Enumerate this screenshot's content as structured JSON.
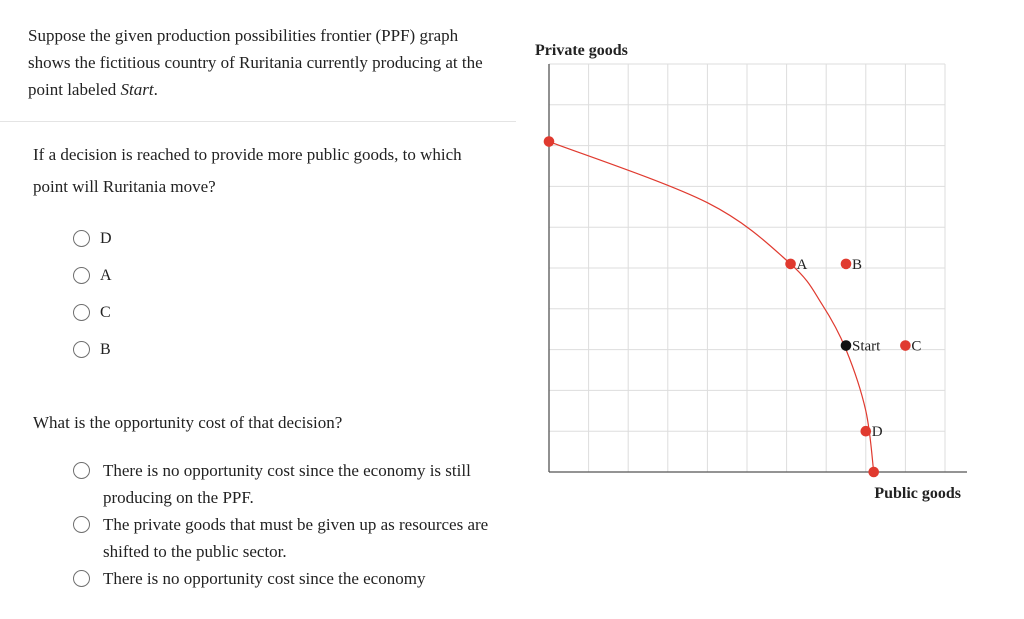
{
  "question": {
    "intro_part1": "Suppose the given production possibilities frontier (PPF) graph shows the fictitious country of Ruritania currently producing at the point labeled ",
    "intro_emph": "Start",
    "intro_end": ".",
    "q1": "If a decision is reached to provide more public goods, to which point will Ruritania move?",
    "q1_options": [
      "D",
      "A",
      "C",
      "B"
    ],
    "q2": "What is the opportunity cost of that decision?",
    "q2_options": [
      "There is no opportunity cost since the economy is still producing on the PPF.",
      "The private goods that must be given up as resources are shifted to the public sector.",
      "There is no opportunity cost since the economy"
    ]
  },
  "chart_data": {
    "type": "scatter",
    "title": "",
    "ylabel": "Private goods",
    "xlabel": "Public goods",
    "xlim": [
      0,
      10
    ],
    "ylim": [
      0,
      10
    ],
    "grid": true,
    "curve_color": "#e03a2f",
    "curve": [
      [
        0,
        8.1
      ],
      [
        4.0,
        6.6
      ],
      [
        6.1,
        5.1
      ],
      [
        6.9,
        4.1
      ],
      [
        7.5,
        3.0
      ],
      [
        8.0,
        1.5
      ],
      [
        8.2,
        0
      ]
    ],
    "points": [
      {
        "label": "",
        "x": 0,
        "y": 8.1,
        "color": "#e03a2f"
      },
      {
        "label": "A",
        "x": 6.1,
        "y": 5.1,
        "color": "#e03a2f"
      },
      {
        "label": "B",
        "x": 7.5,
        "y": 5.1,
        "color": "#e03a2f"
      },
      {
        "label": "Start",
        "x": 7.5,
        "y": 3.1,
        "color": "#111111"
      },
      {
        "label": "C",
        "x": 9.0,
        "y": 3.1,
        "color": "#e03a2f"
      },
      {
        "label": "D",
        "x": 8.0,
        "y": 1.0,
        "color": "#e03a2f"
      },
      {
        "label": "",
        "x": 8.2,
        "y": 0,
        "color": "#e03a2f"
      }
    ]
  }
}
